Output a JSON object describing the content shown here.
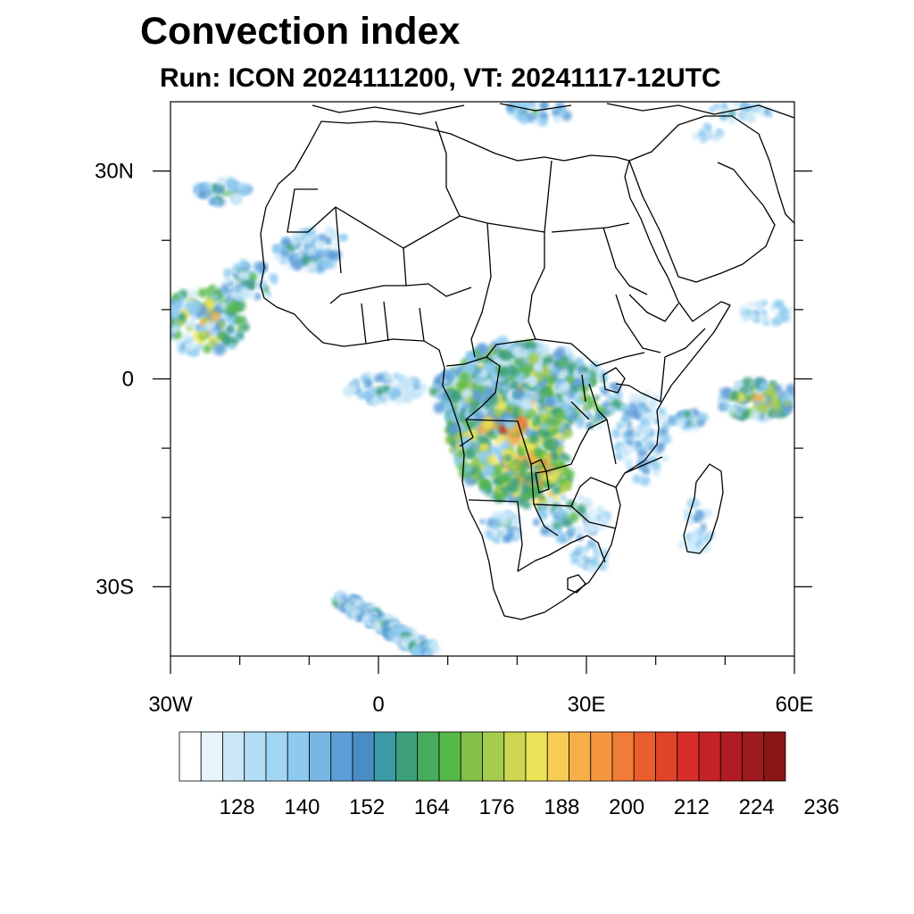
{
  "title": "Convection index",
  "subtitle": "Run: ICON 2024111200,  VT: 20241117-12UTC",
  "map": {
    "region": "Africa",
    "projection": "lat-lon",
    "lon_range": [
      -30,
      60
    ],
    "lat_range": [
      -40,
      40
    ],
    "lat_ticks": [
      {
        "value": 30,
        "label": "30N"
      },
      {
        "value": 0,
        "label": "0"
      },
      {
        "value": -30,
        "label": "30S"
      }
    ],
    "lon_ticks": [
      {
        "value": -30,
        "label": "30W"
      },
      {
        "value": 0,
        "label": "0"
      },
      {
        "value": 30,
        "label": "30E"
      },
      {
        "value": 60,
        "label": "60E"
      }
    ],
    "border_color": "#000000",
    "background": "#ffffff"
  },
  "colorbar": {
    "colors": [
      "#ffffff",
      "#e8f4fc",
      "#cce8f8",
      "#b4def6",
      "#a0d6f4",
      "#8ccaef",
      "#78b6e4",
      "#5e9ed8",
      "#4a8cc4",
      "#3c9aa6",
      "#3ea07a",
      "#46ac5c",
      "#56b848",
      "#82c048",
      "#a6cc4e",
      "#ccd650",
      "#ece458",
      "#f8cc54",
      "#f6b04a",
      "#f49640",
      "#f07c38",
      "#ea5e2e",
      "#e04428",
      "#d82e2a",
      "#c42226",
      "#b01c22",
      "#9e1a1e",
      "#8a1616"
    ],
    "tick_labels": [
      "128",
      "140",
      "152",
      "164",
      "176",
      "188",
      "200",
      "212",
      "224",
      "236"
    ]
  },
  "fields": {
    "blob_palette": [
      "#cce8f8",
      "#8ccaef",
      "#5e9ed8",
      "#3ea07a",
      "#56b848",
      "#a6cc4e",
      "#ece458",
      "#f6b04a",
      "#f07c38",
      "#d82e2a"
    ]
  }
}
